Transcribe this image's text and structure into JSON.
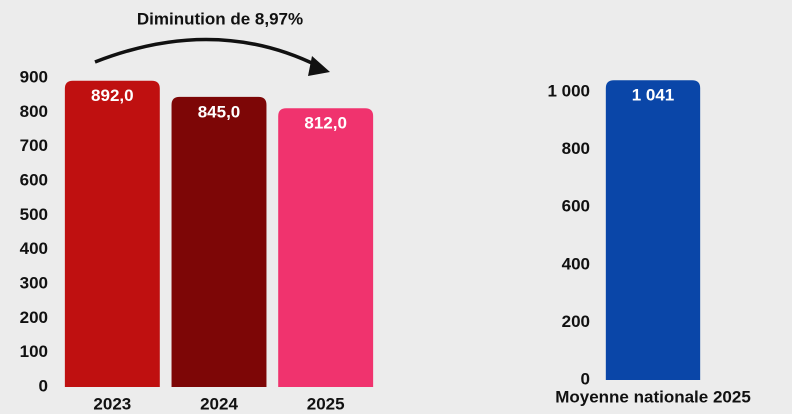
{
  "chart_data": [
    {
      "type": "bar",
      "annotation": "Diminution de 8,97%",
      "categories": [
        "2023",
        "2024",
        "2025"
      ],
      "values": [
        892,
        845,
        812
      ],
      "value_labels": [
        "892,0",
        "845,0",
        "812,0"
      ],
      "colors": [
        "#bf1010",
        "#7d0606",
        "#f0336e"
      ],
      "ylim": [
        0,
        900
      ],
      "yticks": [
        0,
        100,
        200,
        300,
        400,
        500,
        600,
        700,
        800,
        900
      ]
    },
    {
      "type": "bar",
      "categories": [
        "Moyenne nationale 2025"
      ],
      "values": [
        1041
      ],
      "value_labels": [
        "1 041"
      ],
      "colors": [
        "#0a46a8"
      ],
      "ylim": [
        0,
        1000
      ],
      "yticks": [
        0,
        200,
        400,
        600,
        800,
        {
          "value": 1000,
          "label": "1 000"
        }
      ]
    }
  ]
}
